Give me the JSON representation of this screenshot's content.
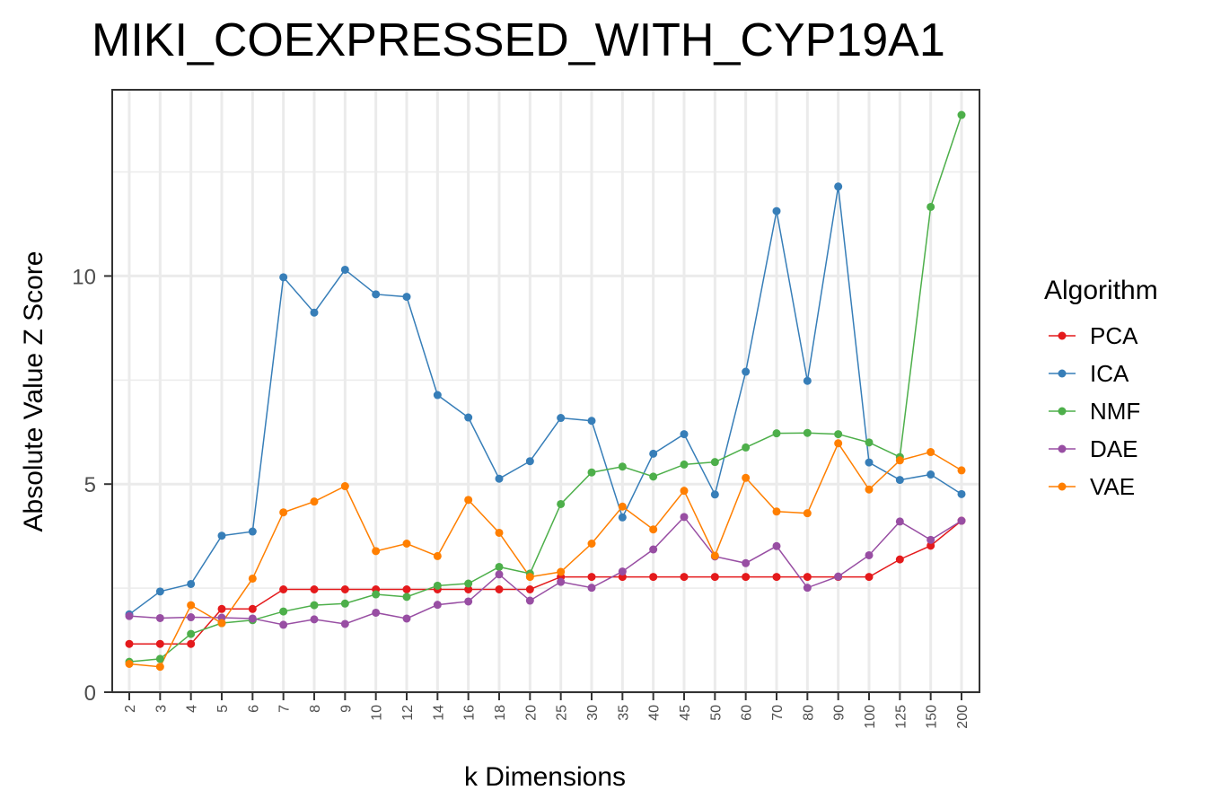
{
  "chart_data": {
    "type": "line",
    "title": "MIKI_COEXPRESSED_WITH_CYP19A1",
    "xlabel": "k Dimensions",
    "ylabel": "Absolute Value Z Score",
    "x_scale": "categorical",
    "categories": [
      "2",
      "3",
      "4",
      "5",
      "6",
      "7",
      "8",
      "9",
      "10",
      "12",
      "14",
      "16",
      "18",
      "20",
      "25",
      "30",
      "35",
      "40",
      "45",
      "50",
      "60",
      "70",
      "80",
      "90",
      "100",
      "125",
      "150",
      "200"
    ],
    "ylim": [
      0,
      14
    ],
    "y_ticks": [
      0,
      5,
      10
    ],
    "grid": true,
    "legend": {
      "title": "Algorithm",
      "placement": "right"
    },
    "series": [
      {
        "name": "PCA",
        "color": "#e41a1c",
        "values": [
          1.16,
          1.16,
          1.16,
          2.0,
          2.0,
          2.47,
          2.47,
          2.47,
          2.47,
          2.47,
          2.47,
          2.47,
          2.47,
          2.47,
          2.77,
          2.77,
          2.77,
          2.77,
          2.77,
          2.77,
          2.77,
          2.77,
          2.77,
          2.77,
          2.77,
          3.19,
          3.52,
          4.12
        ]
      },
      {
        "name": "ICA",
        "color": "#377eb8",
        "values": [
          1.87,
          2.42,
          2.6,
          3.76,
          3.86,
          9.97,
          9.12,
          10.15,
          9.56,
          9.5,
          7.14,
          6.6,
          5.13,
          5.55,
          6.59,
          6.52,
          4.2,
          5.73,
          6.2,
          4.75,
          7.7,
          11.56,
          7.48,
          12.15,
          5.52,
          5.1,
          5.23,
          4.76
        ]
      },
      {
        "name": "NMF",
        "color": "#4daf4a",
        "values": [
          0.73,
          0.8,
          1.4,
          1.66,
          1.73,
          1.94,
          2.09,
          2.13,
          2.35,
          2.29,
          2.56,
          2.61,
          3.01,
          2.85,
          4.52,
          5.28,
          5.42,
          5.18,
          5.47,
          5.53,
          5.88,
          6.22,
          6.23,
          6.2,
          6.0,
          5.65,
          11.66,
          13.87
        ]
      },
      {
        "name": "DAE",
        "color": "#984ea3",
        "values": [
          1.83,
          1.78,
          1.8,
          1.79,
          1.77,
          1.62,
          1.75,
          1.64,
          1.91,
          1.77,
          2.1,
          2.18,
          2.83,
          2.2,
          2.65,
          2.51,
          2.9,
          3.43,
          4.21,
          3.26,
          3.1,
          3.51,
          2.51,
          2.78,
          3.29,
          4.1,
          3.66,
          4.12
        ]
      },
      {
        "name": "VAE",
        "color": "#ff7f00",
        "values": [
          0.68,
          0.61,
          2.09,
          1.66,
          2.73,
          4.32,
          4.58,
          4.95,
          3.39,
          3.57,
          3.27,
          4.62,
          3.83,
          2.77,
          2.89,
          3.57,
          4.46,
          3.91,
          4.84,
          3.28,
          5.15,
          4.34,
          4.3,
          5.98,
          4.87,
          5.57,
          5.77,
          5.33
        ]
      }
    ]
  }
}
